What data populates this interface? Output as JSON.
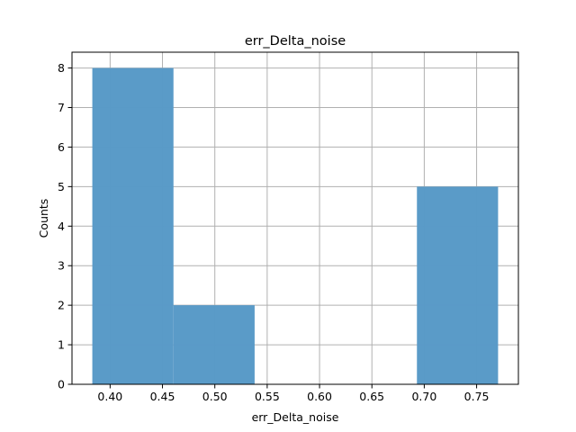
{
  "chart_data": {
    "type": "bar",
    "title": "err_Delta_noise",
    "xlabel": "err_Delta_noise",
    "ylabel": "Counts",
    "bins": [
      {
        "start": 0.383,
        "end": 0.4605,
        "count": 8
      },
      {
        "start": 0.4605,
        "end": 0.538,
        "count": 2
      },
      {
        "start": 0.538,
        "end": 0.6155,
        "count": 0
      },
      {
        "start": 0.6155,
        "end": 0.693,
        "count": 0
      },
      {
        "start": 0.693,
        "end": 0.7705,
        "count": 5
      }
    ],
    "xlim": [
      0.3636,
      0.7899
    ],
    "ylim": [
      0,
      8.4
    ],
    "xticks": [
      "0.40",
      "0.45",
      "0.50",
      "0.55",
      "0.60",
      "0.65",
      "0.70",
      "0.75"
    ],
    "yticks": [
      "0",
      "1",
      "2",
      "3",
      "4",
      "5",
      "6",
      "7",
      "8"
    ],
    "grid": true,
    "bar_color": "#5799c7"
  }
}
